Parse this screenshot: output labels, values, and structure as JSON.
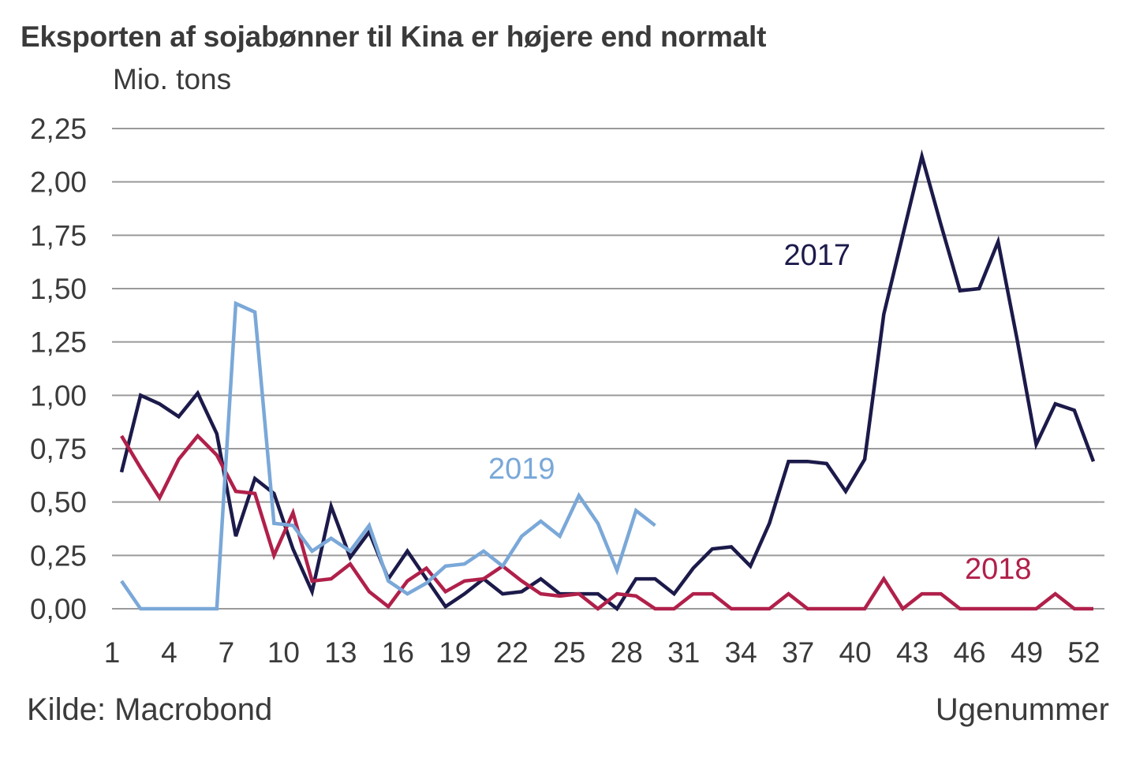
{
  "chart_data": {
    "type": "line",
    "title": "Eksporten af sojabønner til Kina er højere end normalt",
    "ylabel": "Mio. tons",
    "xlabel": "Ugenummer",
    "source": "Kilde: Macrobond",
    "ylim": [
      0,
      2.25
    ],
    "xlim": [
      1,
      52
    ],
    "grid": true,
    "yticks": [
      0,
      0.25,
      0.5,
      0.75,
      1.0,
      1.25,
      1.5,
      1.75,
      2.0,
      2.25
    ],
    "ytick_labels": [
      "0,00",
      "0,25",
      "0,50",
      "0,75",
      "1,00",
      "1,25",
      "1,50",
      "1,75",
      "2,00",
      "2,25"
    ],
    "xticks": [
      1,
      4,
      7,
      10,
      13,
      16,
      19,
      22,
      25,
      28,
      31,
      34,
      37,
      40,
      43,
      46,
      49,
      52
    ],
    "xtick_labels": [
      "1",
      "4",
      "7",
      "10",
      "13",
      "16",
      "19",
      "22",
      "25",
      "28",
      "31",
      "34",
      "37",
      "40",
      "43",
      "46",
      "49",
      "52"
    ],
    "series": [
      {
        "name": "2017",
        "color": "#1c1a4a",
        "label_at": {
          "week": 37.5,
          "value": 1.61
        },
        "x": [
          1,
          2,
          3,
          4,
          5,
          6,
          7,
          8,
          9,
          10,
          11,
          12,
          13,
          14,
          15,
          16,
          17,
          18,
          19,
          20,
          21,
          22,
          23,
          24,
          25,
          26,
          27,
          28,
          29,
          30,
          31,
          32,
          33,
          34,
          35,
          36,
          37,
          38,
          39,
          40,
          41,
          42,
          43,
          44,
          45,
          46,
          47,
          48,
          49,
          50,
          51,
          52
        ],
        "values": [
          0.64,
          1.0,
          0.96,
          0.9,
          1.01,
          0.82,
          0.34,
          0.61,
          0.54,
          0.28,
          0.08,
          0.48,
          0.24,
          0.36,
          0.14,
          0.27,
          0.14,
          0.01,
          0.07,
          0.14,
          0.07,
          0.08,
          0.14,
          0.07,
          0.07,
          0.07,
          0.0,
          0.14,
          0.14,
          0.07,
          0.19,
          0.28,
          0.29,
          0.2,
          0.4,
          0.69,
          0.69,
          0.68,
          0.55,
          0.7,
          1.38,
          1.75,
          2.12,
          1.8,
          1.49,
          1.5,
          1.72,
          1.26,
          0.77,
          0.96,
          0.93,
          0.69
        ]
      },
      {
        "name": "2018",
        "color": "#b0204a",
        "label_at": {
          "week": 47.0,
          "value": 0.14
        },
        "x": [
          1,
          2,
          3,
          4,
          5,
          6,
          7,
          8,
          9,
          10,
          11,
          12,
          13,
          14,
          15,
          16,
          17,
          18,
          19,
          20,
          21,
          22,
          23,
          24,
          25,
          26,
          27,
          28,
          29,
          30,
          31,
          32,
          33,
          34,
          35,
          36,
          37,
          38,
          39,
          40,
          41,
          42,
          43,
          44,
          45,
          46,
          47,
          48,
          49,
          50,
          51,
          52
        ],
        "values": [
          0.81,
          0.66,
          0.52,
          0.7,
          0.81,
          0.72,
          0.55,
          0.54,
          0.25,
          0.45,
          0.13,
          0.14,
          0.21,
          0.08,
          0.01,
          0.13,
          0.19,
          0.08,
          0.13,
          0.14,
          0.2,
          0.13,
          0.07,
          0.06,
          0.07,
          0.0,
          0.07,
          0.06,
          0.0,
          0.0,
          0.07,
          0.07,
          0.0,
          0.0,
          0.0,
          0.07,
          0.0,
          0.0,
          0.0,
          0.0,
          0.14,
          0.0,
          0.07,
          0.07,
          0.0,
          0.0,
          0.0,
          0.0,
          0.0,
          0.07,
          0.0,
          0.0
        ]
      },
      {
        "name": "2019",
        "color": "#7aa8d8",
        "label_at": {
          "week": 22.0,
          "value": 0.61
        },
        "x": [
          1,
          2,
          3,
          4,
          5,
          6,
          7,
          8,
          9,
          10,
          11,
          12,
          13,
          14,
          15,
          16,
          17,
          18,
          19,
          20,
          21,
          22,
          23,
          24,
          25,
          26,
          27,
          28,
          29
        ],
        "values": [
          0.13,
          0.0,
          0.0,
          0.0,
          0.0,
          0.0,
          1.43,
          1.39,
          0.4,
          0.39,
          0.27,
          0.33,
          0.27,
          0.39,
          0.13,
          0.07,
          0.12,
          0.2,
          0.21,
          0.27,
          0.2,
          0.34,
          0.41,
          0.34,
          0.53,
          0.4,
          0.18,
          0.46,
          0.39
        ]
      }
    ]
  }
}
